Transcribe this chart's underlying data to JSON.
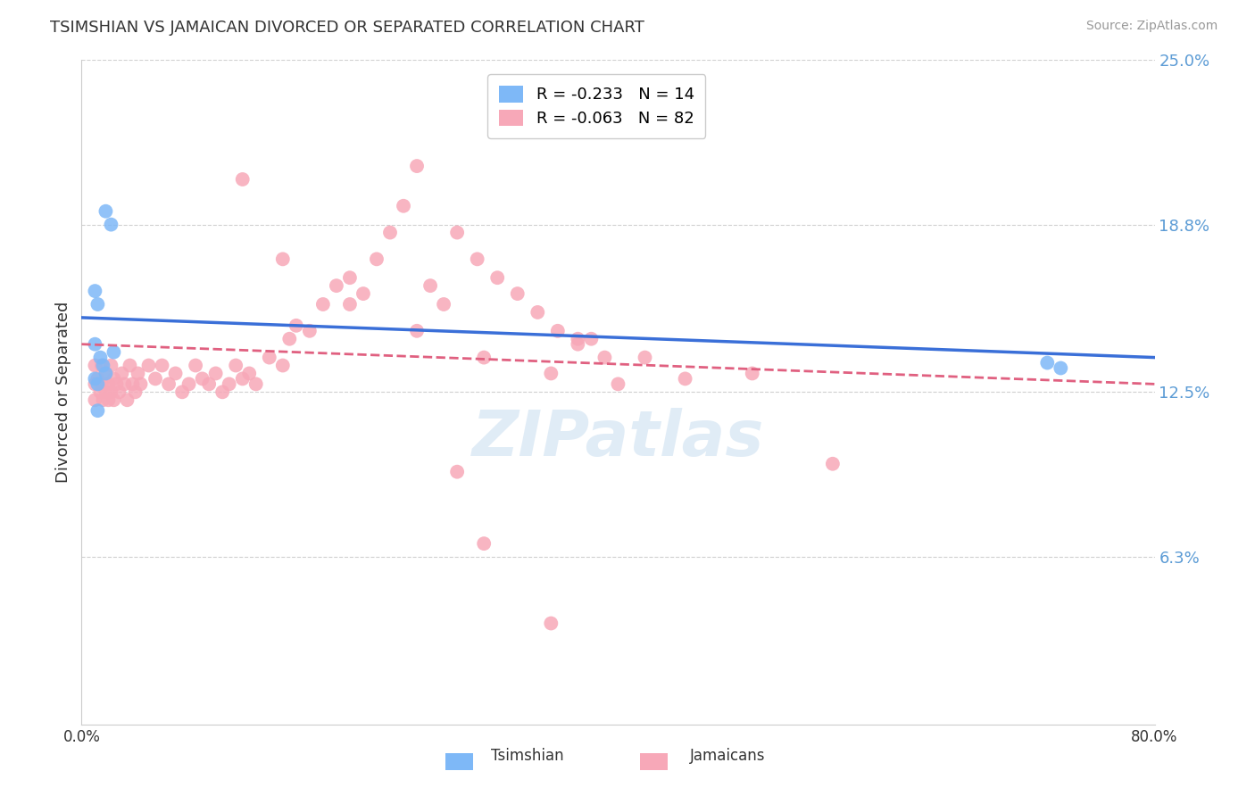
{
  "title": "TSIMSHIAN VS JAMAICAN DIVORCED OR SEPARATED CORRELATION CHART",
  "source": "Source: ZipAtlas.com",
  "ylabel": "Divorced or Separated",
  "watermark": "ZIPatlas",
  "xlim": [
    0.0,
    0.8
  ],
  "ylim": [
    0.0,
    0.25
  ],
  "y_tick_labels": [
    "25.0%",
    "18.8%",
    "12.5%",
    "6.3%"
  ],
  "y_tick_vals": [
    0.25,
    0.188,
    0.125,
    0.063
  ],
  "legend_r_tsimshian": "R = -0.233",
  "legend_n_tsimshian": "N = 14",
  "legend_r_jamaican": "R = -0.063",
  "legend_n_jamaican": "N = 82",
  "tsimshian_color": "#7EB8F7",
  "jamaican_color": "#F7A8B8",
  "tsimshian_line_color": "#3a6fd8",
  "jamaican_line_color": "#e06080",
  "grid_color": "#d0d0d0",
  "right_axis_color": "#5b9bd5",
  "tsimshian_x": [
    0.018,
    0.022,
    0.01,
    0.012,
    0.01,
    0.014,
    0.016,
    0.018,
    0.01,
    0.012,
    0.024,
    0.72,
    0.73,
    0.012
  ],
  "tsimshian_y": [
    0.193,
    0.188,
    0.163,
    0.158,
    0.143,
    0.138,
    0.135,
    0.132,
    0.13,
    0.128,
    0.14,
    0.136,
    0.134,
    0.118
  ],
  "jamaican_x": [
    0.01,
    0.01,
    0.01,
    0.012,
    0.014,
    0.015,
    0.015,
    0.016,
    0.018,
    0.018,
    0.02,
    0.02,
    0.022,
    0.022,
    0.024,
    0.024,
    0.026,
    0.028,
    0.03,
    0.032,
    0.034,
    0.036,
    0.038,
    0.04,
    0.042,
    0.044,
    0.05,
    0.055,
    0.06,
    0.065,
    0.07,
    0.075,
    0.08,
    0.085,
    0.09,
    0.095,
    0.1,
    0.105,
    0.11,
    0.115,
    0.12,
    0.125,
    0.13,
    0.14,
    0.15,
    0.155,
    0.16,
    0.17,
    0.18,
    0.19,
    0.2,
    0.21,
    0.22,
    0.23,
    0.24,
    0.25,
    0.26,
    0.27,
    0.28,
    0.295,
    0.31,
    0.325,
    0.34,
    0.355,
    0.37,
    0.39,
    0.12,
    0.15,
    0.2,
    0.25,
    0.3,
    0.35,
    0.37,
    0.4,
    0.45,
    0.5,
    0.56,
    0.38,
    0.42,
    0.28,
    0.3,
    0.35
  ],
  "jamaican_y": [
    0.135,
    0.128,
    0.122,
    0.13,
    0.125,
    0.135,
    0.128,
    0.122,
    0.132,
    0.125,
    0.128,
    0.122,
    0.135,
    0.125,
    0.13,
    0.122,
    0.128,
    0.125,
    0.132,
    0.128,
    0.122,
    0.135,
    0.128,
    0.125,
    0.132,
    0.128,
    0.135,
    0.13,
    0.135,
    0.128,
    0.132,
    0.125,
    0.128,
    0.135,
    0.13,
    0.128,
    0.132,
    0.125,
    0.128,
    0.135,
    0.13,
    0.132,
    0.128,
    0.138,
    0.135,
    0.145,
    0.15,
    0.148,
    0.158,
    0.165,
    0.168,
    0.162,
    0.175,
    0.185,
    0.195,
    0.21,
    0.165,
    0.158,
    0.185,
    0.175,
    0.168,
    0.162,
    0.155,
    0.148,
    0.145,
    0.138,
    0.205,
    0.175,
    0.158,
    0.148,
    0.138,
    0.132,
    0.143,
    0.128,
    0.13,
    0.132,
    0.098,
    0.145,
    0.138,
    0.095,
    0.068,
    0.038
  ]
}
